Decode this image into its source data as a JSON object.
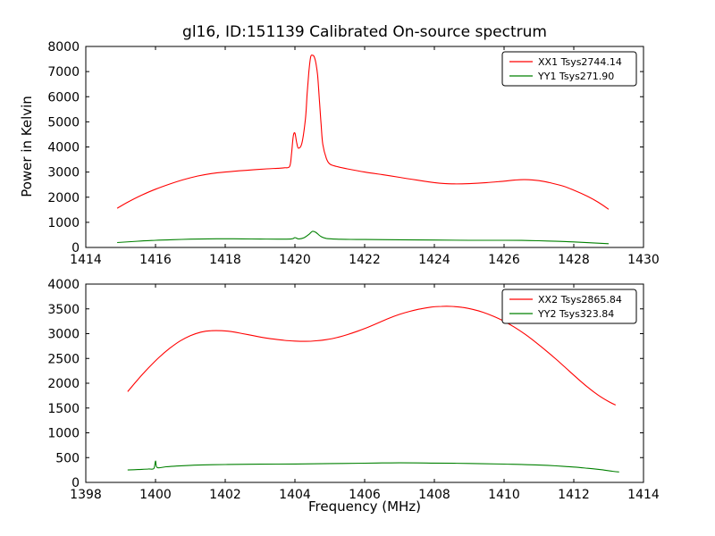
{
  "chart_data": [
    {
      "type": "line",
      "title": "gl16, ID:151139 Calibrated On-source spectrum",
      "xlabel": "",
      "ylabel": "Power in Kelvin",
      "xlim": [
        1414,
        1430
      ],
      "ylim": [
        0,
        8000
      ],
      "xticks": [
        1414,
        1416,
        1418,
        1420,
        1422,
        1424,
        1426,
        1428,
        1430
      ],
      "yticks": [
        0,
        1000,
        2000,
        3000,
        4000,
        5000,
        6000,
        7000,
        8000
      ],
      "grid": false,
      "legend_position": "upper right",
      "series": [
        {
          "name": "XX1 Tsys2744.14",
          "color": "#ff0000",
          "points": [
            [
              1414.9,
              1560
            ],
            [
              1415.2,
              1800
            ],
            [
              1415.6,
              2080
            ],
            [
              1416.0,
              2320
            ],
            [
              1416.4,
              2520
            ],
            [
              1416.8,
              2700
            ],
            [
              1417.2,
              2840
            ],
            [
              1417.6,
              2940
            ],
            [
              1418.0,
              3000
            ],
            [
              1418.4,
              3050
            ],
            [
              1418.8,
              3090
            ],
            [
              1419.2,
              3130
            ],
            [
              1419.5,
              3150
            ],
            [
              1419.7,
              3170
            ],
            [
              1419.85,
              3230
            ],
            [
              1419.9,
              3700
            ],
            [
              1419.95,
              4420
            ],
            [
              1420.0,
              4550
            ],
            [
              1420.05,
              4180
            ],
            [
              1420.1,
              3950
            ],
            [
              1420.2,
              4150
            ],
            [
              1420.3,
              5100
            ],
            [
              1420.35,
              6100
            ],
            [
              1420.4,
              7000
            ],
            [
              1420.45,
              7580
            ],
            [
              1420.5,
              7650
            ],
            [
              1420.55,
              7600
            ],
            [
              1420.6,
              7350
            ],
            [
              1420.65,
              6850
            ],
            [
              1420.7,
              5900
            ],
            [
              1420.75,
              4900
            ],
            [
              1420.8,
              4100
            ],
            [
              1420.9,
              3550
            ],
            [
              1421.0,
              3320
            ],
            [
              1421.2,
              3220
            ],
            [
              1421.5,
              3130
            ],
            [
              1422.0,
              3000
            ],
            [
              1422.5,
              2900
            ],
            [
              1423.0,
              2790
            ],
            [
              1423.5,
              2680
            ],
            [
              1424.0,
              2580
            ],
            [
              1424.5,
              2530
            ],
            [
              1425.0,
              2540
            ],
            [
              1425.5,
              2580
            ],
            [
              1426.0,
              2640
            ],
            [
              1426.3,
              2680
            ],
            [
              1426.6,
              2700
            ],
            [
              1427.0,
              2660
            ],
            [
              1427.3,
              2580
            ],
            [
              1427.7,
              2440
            ],
            [
              1428.0,
              2280
            ],
            [
              1428.4,
              2030
            ],
            [
              1428.7,
              1800
            ],
            [
              1429.0,
              1520
            ]
          ]
        },
        {
          "name": "YY1 Tsys271.90",
          "color": "#008000",
          "points": [
            [
              1414.9,
              195
            ],
            [
              1415.5,
              250
            ],
            [
              1416.0,
              285
            ],
            [
              1416.5,
              310
            ],
            [
              1417.0,
              330
            ],
            [
              1417.5,
              340
            ],
            [
              1418.0,
              345
            ],
            [
              1418.5,
              340
            ],
            [
              1419.0,
              335
            ],
            [
              1419.5,
              330
            ],
            [
              1419.9,
              340
            ],
            [
              1420.0,
              390
            ],
            [
              1420.1,
              340
            ],
            [
              1420.25,
              380
            ],
            [
              1420.4,
              520
            ],
            [
              1420.5,
              640
            ],
            [
              1420.6,
              600
            ],
            [
              1420.75,
              430
            ],
            [
              1420.9,
              360
            ],
            [
              1421.2,
              330
            ],
            [
              1421.6,
              320
            ],
            [
              1422.0,
              315
            ],
            [
              1423.0,
              305
            ],
            [
              1424.0,
              295
            ],
            [
              1425.0,
              285
            ],
            [
              1426.0,
              285
            ],
            [
              1426.5,
              280
            ],
            [
              1427.0,
              265
            ],
            [
              1427.5,
              245
            ],
            [
              1428.0,
              220
            ],
            [
              1428.5,
              185
            ],
            [
              1429.0,
              150
            ]
          ]
        }
      ]
    },
    {
      "type": "line",
      "title": "",
      "xlabel": "Frequency (MHz)",
      "ylabel": "",
      "xlim": [
        1398,
        1414
      ],
      "ylim": [
        0,
        4000
      ],
      "xticks": [
        1398,
        1400,
        1402,
        1404,
        1406,
        1408,
        1410,
        1412,
        1414
      ],
      "yticks": [
        0,
        500,
        1000,
        1500,
        2000,
        2500,
        3000,
        3500,
        4000
      ],
      "grid": false,
      "legend_position": "upper right",
      "series": [
        {
          "name": "XX2 Tsys2865.84",
          "color": "#ff0000",
          "points": [
            [
              1399.2,
              1830
            ],
            [
              1399.5,
              2080
            ],
            [
              1399.8,
              2310
            ],
            [
              1400.1,
              2520
            ],
            [
              1400.4,
              2700
            ],
            [
              1400.7,
              2850
            ],
            [
              1401.0,
              2960
            ],
            [
              1401.3,
              3030
            ],
            [
              1401.6,
              3060
            ],
            [
              1401.9,
              3060
            ],
            [
              1402.2,
              3040
            ],
            [
              1402.5,
              3000
            ],
            [
              1402.8,
              2960
            ],
            [
              1403.1,
              2920
            ],
            [
              1403.4,
              2890
            ],
            [
              1403.7,
              2865
            ],
            [
              1404.0,
              2850
            ],
            [
              1404.3,
              2845
            ],
            [
              1404.6,
              2855
            ],
            [
              1404.9,
              2880
            ],
            [
              1405.2,
              2920
            ],
            [
              1405.5,
              2980
            ],
            [
              1405.8,
              3050
            ],
            [
              1406.1,
              3130
            ],
            [
              1406.4,
              3220
            ],
            [
              1406.7,
              3310
            ],
            [
              1407.0,
              3390
            ],
            [
              1407.3,
              3450
            ],
            [
              1407.6,
              3500
            ],
            [
              1407.9,
              3535
            ],
            [
              1408.2,
              3550
            ],
            [
              1408.5,
              3550
            ],
            [
              1408.8,
              3530
            ],
            [
              1409.1,
              3490
            ],
            [
              1409.4,
              3430
            ],
            [
              1409.7,
              3350
            ],
            [
              1410.0,
              3250
            ],
            [
              1410.3,
              3130
            ],
            [
              1410.6,
              2990
            ],
            [
              1410.9,
              2830
            ],
            [
              1411.2,
              2660
            ],
            [
              1411.5,
              2480
            ],
            [
              1411.8,
              2290
            ],
            [
              1412.1,
              2100
            ],
            [
              1412.4,
              1920
            ],
            [
              1412.7,
              1760
            ],
            [
              1413.0,
              1630
            ],
            [
              1413.2,
              1560
            ]
          ]
        },
        {
          "name": "YY2 Tsys323.84",
          "color": "#008000",
          "points": [
            [
              1399.2,
              250
            ],
            [
              1399.5,
              260
            ],
            [
              1399.8,
              270
            ],
            [
              1399.95,
              280
            ],
            [
              1400.0,
              430
            ],
            [
              1400.05,
              300
            ],
            [
              1400.3,
              315
            ],
            [
              1400.6,
              330
            ],
            [
              1401.0,
              345
            ],
            [
              1401.5,
              355
            ],
            [
              1402.0,
              360
            ],
            [
              1403.0,
              368
            ],
            [
              1404.0,
              372
            ],
            [
              1405.0,
              380
            ],
            [
              1406.0,
              388
            ],
            [
              1406.5,
              392
            ],
            [
              1407.0,
              395
            ],
            [
              1407.5,
              393
            ],
            [
              1408.0,
              390
            ],
            [
              1409.0,
              382
            ],
            [
              1410.0,
              370
            ],
            [
              1410.5,
              362
            ],
            [
              1411.0,
              350
            ],
            [
              1411.5,
              333
            ],
            [
              1412.0,
              310
            ],
            [
              1412.4,
              285
            ],
            [
              1412.8,
              255
            ],
            [
              1413.1,
              225
            ],
            [
              1413.3,
              210
            ]
          ]
        }
      ]
    }
  ]
}
